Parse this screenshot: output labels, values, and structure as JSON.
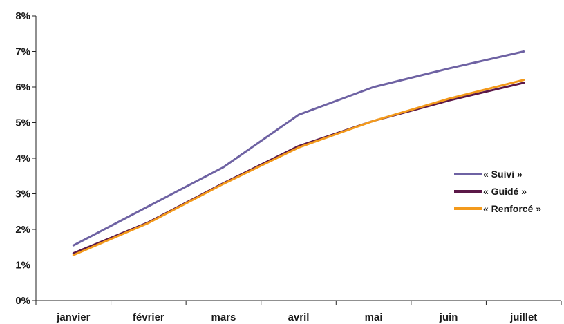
{
  "chart_data": {
    "type": "line",
    "categories": [
      "janvier",
      "février",
      "mars",
      "avril",
      "mai",
      "juin",
      "juillet"
    ],
    "y_ticks": [
      "0%",
      "1%",
      "2%",
      "3%",
      "4%",
      "5%",
      "6%",
      "7%",
      "8%"
    ],
    "ylim": [
      0,
      8
    ],
    "grid": false,
    "legend_position": "right",
    "series": [
      {
        "name": "« Suivi »",
        "color": "#6e62a3",
        "values": [
          1.55,
          2.65,
          3.75,
          5.22,
          6.0,
          6.52,
          7.0
        ]
      },
      {
        "name": "« Guidé »",
        "color": "#5b1848",
        "values": [
          1.33,
          2.2,
          3.3,
          4.34,
          5.05,
          5.62,
          6.12
        ]
      },
      {
        "name": "« Renforcé »",
        "color": "#f39a1c",
        "values": [
          1.28,
          2.18,
          3.28,
          4.3,
          5.05,
          5.67,
          6.2
        ]
      }
    ]
  }
}
